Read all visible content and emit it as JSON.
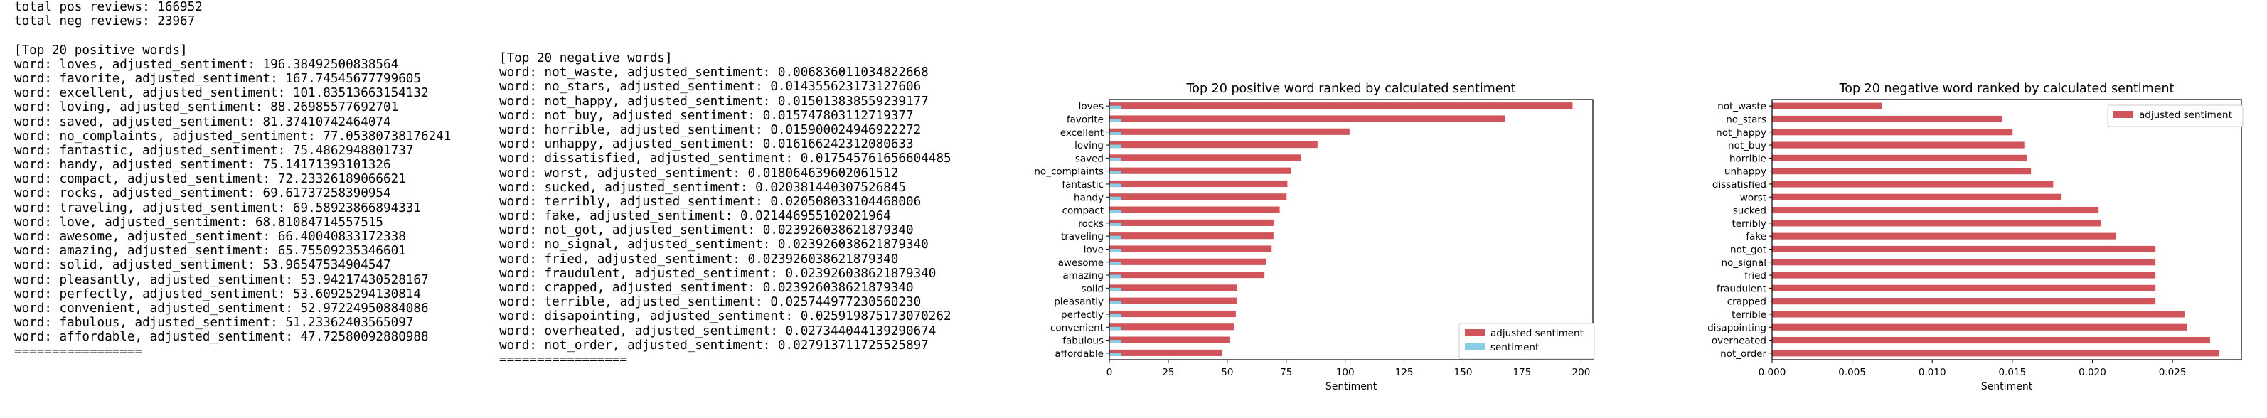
{
  "summary": {
    "total_pos": "total pos reviews: 166952",
    "total_neg": "total neg reviews: 23967"
  },
  "positive_header": "[Top 20 positive words]",
  "negative_header": "[Top 20 negative words]",
  "positive_lines": [
    "word: loves, adjusted_sentiment: 196.38492500838564",
    "word: favorite, adjusted_sentiment: 167.74545677799605",
    "word: excellent, adjusted_sentiment: 101.83513663154132",
    "word: loving, adjusted_sentiment: 88.26985577692701",
    "word: saved, adjusted_sentiment: 81.37410742464074",
    "word: no_complaints, adjusted_sentiment: 77.05380738176241",
    "word: fantastic, adjusted_sentiment: 75.4862948801737",
    "word: handy, adjusted_sentiment: 75.14171393101326",
    "word: compact, adjusted_sentiment: 72.23326189066621",
    "word: rocks, adjusted_sentiment: 69.61737258390954",
    "word: traveling, adjusted_sentiment: 69.58923866894331",
    "word: love, adjusted_sentiment: 68.81084714557515",
    "word: awesome, adjusted_sentiment: 66.40040833172338",
    "word: amazing, adjusted_sentiment: 65.75509235346601",
    "word: solid, adjusted_sentiment: 53.96547534904547",
    "word: pleasantly, adjusted_sentiment: 53.94217430528167",
    "word: perfectly, adjusted_sentiment: 53.60925294130814",
    "word: convenient, adjusted_sentiment: 52.97224950884086",
    "word: fabulous, adjusted_sentiment: 51.23362403565097",
    "word: affordable, adjusted_sentiment: 47.72580092880988"
  ],
  "negative_lines": [
    "word: not_waste, adjusted_sentiment: 0.006836011034822668",
    "word: no_stars, adjusted_sentiment: 0.014355623173127606",
    "word: not_happy, adjusted_sentiment: 0.015013838559239177",
    "word: not_buy, adjusted_sentiment: 0.015747803112719377",
    "word: horrible, adjusted_sentiment: 0.015900024946922272",
    "word: unhappy, adjusted_sentiment: 0.016166242312080633",
    "word: dissatisfied, adjusted_sentiment: 0.017545761656604485",
    "word: worst, adjusted_sentiment: 0.018064639602061512",
    "word: sucked, adjusted_sentiment: 0.020381440307526845",
    "word: terribly, adjusted_sentiment: 0.020508033104468006",
    "word: fake, adjusted_sentiment: 0.021446955102021964",
    "word: not_got, adjusted_sentiment: 0.023926038621879340",
    "word: no_signal, adjusted_sentiment: 0.023926038621879340",
    "word: fried, adjusted_sentiment: 0.023926038621879340",
    "word: fraudulent, adjusted_sentiment: 0.023926038621879340",
    "word: crapped, adjusted_sentiment: 0.023926038621879340",
    "word: terrible, adjusted_sentiment: 0.025744977230560230",
    "word: disapointing, adjusted_sentiment: 0.025919875173070262",
    "word: overheated, adjusted_sentiment: 0.027344044139290674",
    "word: not_order, adjusted_sentiment: 0.027913711725525897"
  ],
  "separator": "=================",
  "colors": {
    "adjusted": "#d0545a",
    "sentiment": "#87cde6",
    "axis": "#000000"
  },
  "chart_data": [
    {
      "type": "bar",
      "orientation": "horizontal",
      "title": "Top 20 positive word ranked by calculated sentiment",
      "xlabel": "Sentiment",
      "ylabel": "",
      "categories": [
        "loves",
        "favorite",
        "excellent",
        "loving",
        "saved",
        "no_complaints",
        "fantastic",
        "handy",
        "compact",
        "rocks",
        "traveling",
        "love",
        "awesome",
        "amazing",
        "solid",
        "pleasantly",
        "perfectly",
        "convenient",
        "fabulous",
        "affordable"
      ],
      "series": [
        {
          "name": "adjusted sentiment",
          "values": [
            196.38,
            167.75,
            101.84,
            88.27,
            81.37,
            77.05,
            75.49,
            75.14,
            72.23,
            69.62,
            69.59,
            68.81,
            66.4,
            65.76,
            53.97,
            53.94,
            53.61,
            52.97,
            51.23,
            47.73
          ]
        },
        {
          "name": "sentiment",
          "values": [
            5,
            5,
            5,
            5,
            5,
            5,
            5,
            5,
            5,
            5,
            5,
            5,
            5,
            5,
            5,
            5,
            5,
            5,
            5,
            5
          ]
        }
      ],
      "xlim": [
        0,
        205
      ],
      "xticks": [
        0,
        25,
        50,
        75,
        100,
        125,
        150,
        175,
        200
      ],
      "xtick_labels": [
        "0",
        "25",
        "50",
        "75",
        "100",
        "125",
        "150",
        "175",
        "200"
      ],
      "legend": "bottom-right",
      "grid": false
    },
    {
      "type": "bar",
      "orientation": "horizontal",
      "title": "Top 20 negative word ranked by calculated sentiment",
      "xlabel": "Sentiment",
      "ylabel": "",
      "categories": [
        "not_waste",
        "no_stars",
        "not_happy",
        "not_buy",
        "horrible",
        "unhappy",
        "dissatisfied",
        "worst",
        "sucked",
        "terribly",
        "fake",
        "not_got",
        "no_signal",
        "fried",
        "fraudulent",
        "crapped",
        "terrible",
        "disapointing",
        "overheated",
        "not_order"
      ],
      "series": [
        {
          "name": "adjusted sentiment",
          "values": [
            0.006836,
            0.014356,
            0.015014,
            0.015748,
            0.0159,
            0.016166,
            0.017546,
            0.018065,
            0.020381,
            0.020508,
            0.021447,
            0.023926,
            0.023926,
            0.023926,
            0.023926,
            0.023926,
            0.025745,
            0.02592,
            0.027344,
            0.027914
          ]
        }
      ],
      "xlim": [
        0,
        0.0293
      ],
      "xticks": [
        0,
        0.005,
        0.01,
        0.015,
        0.02,
        0.025
      ],
      "xtick_labels": [
        "0.000",
        "0.005",
        "0.010",
        "0.015",
        "0.020",
        "0.025"
      ],
      "legend": "top-right",
      "grid": false
    }
  ]
}
